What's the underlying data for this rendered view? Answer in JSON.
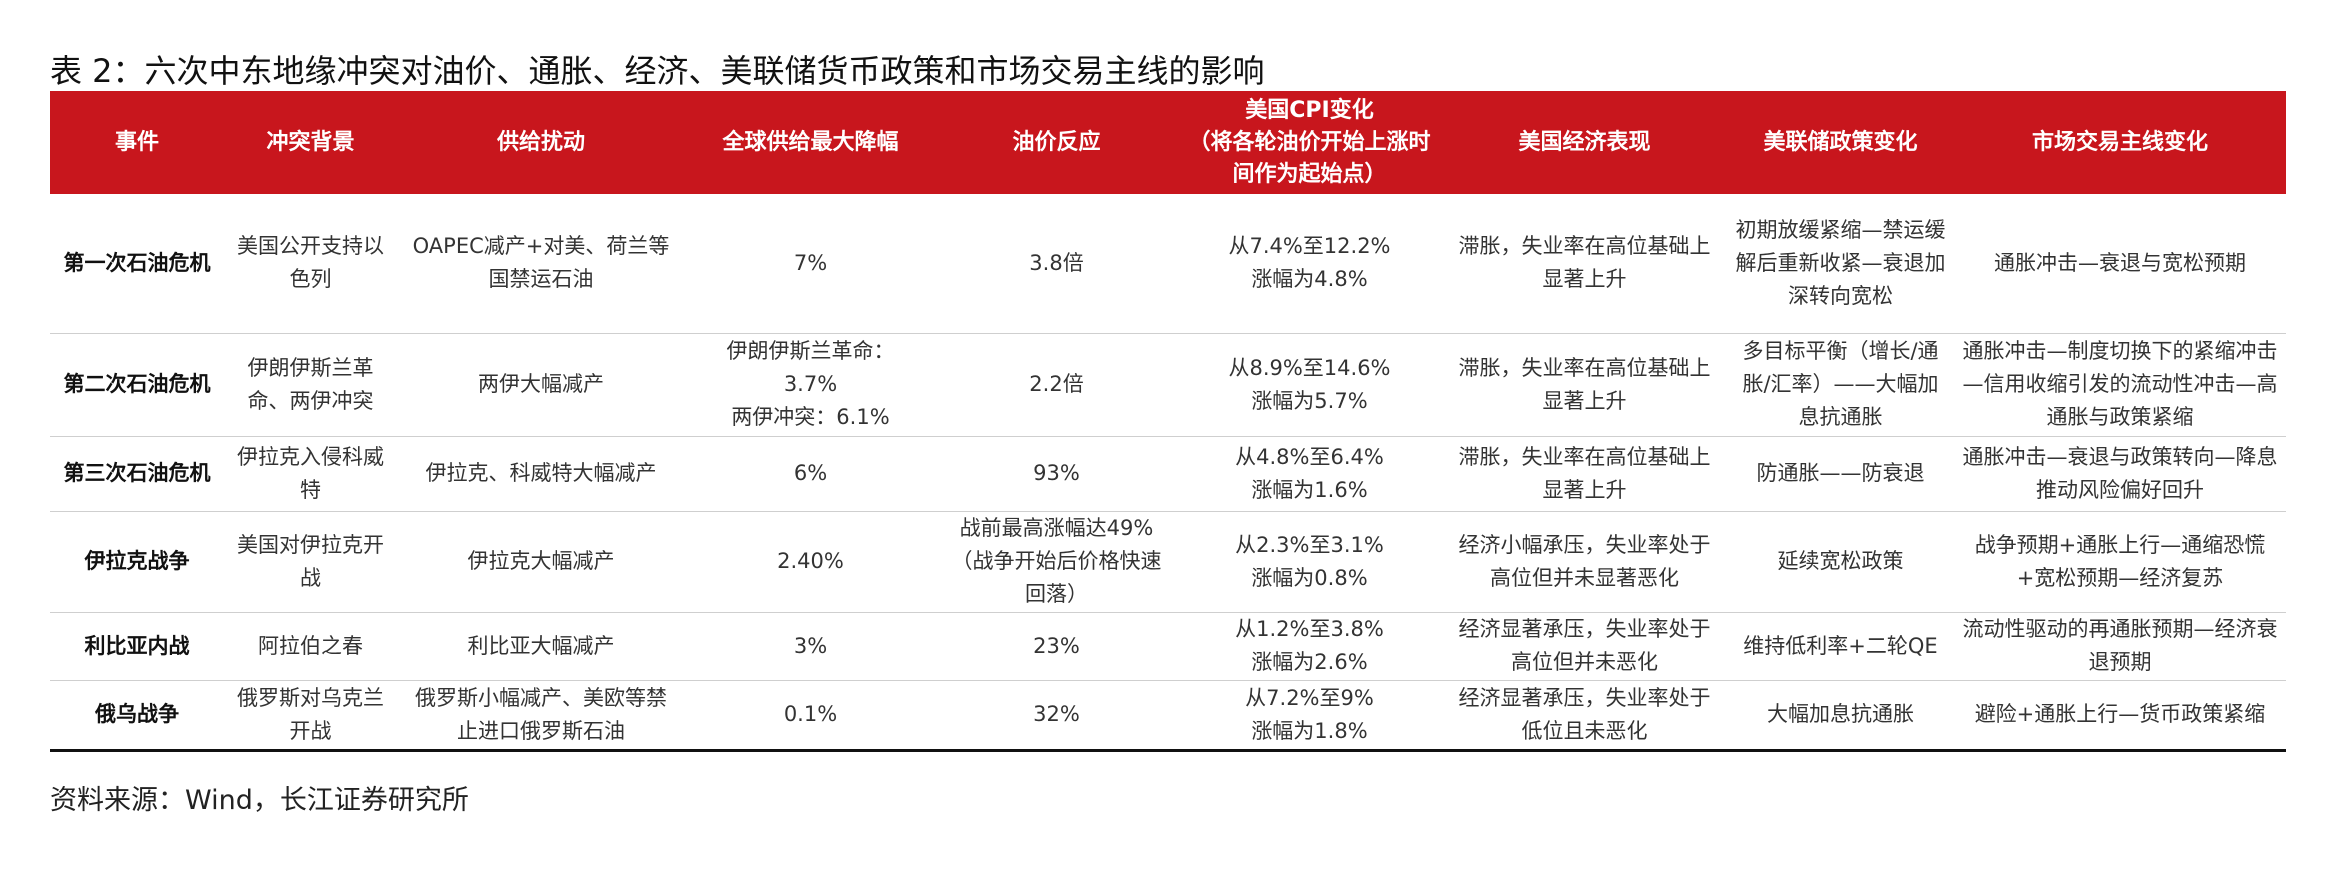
{
  "title": "表 2：六次中东地缘冲突对油价、通胀、经济、美联储货币政策和市场交易主线的影响",
  "table": {
    "headers": [
      "事件",
      "冲突背景",
      "供给扰动",
      "全球供给最大降幅",
      "油价反应",
      [
        "美国CPI变化",
        "（将各轮油价开始上涨时间作为起始点）"
      ],
      "美国经济表现",
      "美联储政策变化",
      "市场交易主线变化"
    ],
    "rows": [
      [
        "第一次石油危机",
        "美国公开支持以色列",
        "OAPEC减产+对美、荷兰等国禁运石油",
        "7%",
        "3.8倍",
        [
          "从7.4%至12.2%",
          "涨幅为4.8%"
        ],
        "滞胀，失业率在高位基础上显著上升",
        "初期放缓紧缩—禁运缓解后重新收紧—衰退加深转向宽松",
        "通胀冲击—衰退与宽松预期"
      ],
      [
        "第二次石油危机",
        "伊朗伊斯兰革命、两伊冲突",
        "两伊大幅减产",
        [
          "伊朗伊斯兰革命：",
          "3.7%",
          "两伊冲突：6.1%"
        ],
        "2.2倍",
        [
          "从8.9%至14.6%",
          "涨幅为5.7%"
        ],
        "滞胀，失业率在高位基础上显著上升",
        "多目标平衡（增长/通胀/汇率）——大幅加息抗通胀",
        "通胀冲击—制度切换下的紧缩冲击—信用收缩引发的流动性冲击—高通胀与政策紧缩"
      ],
      [
        "第三次石油危机",
        "伊拉克入侵科威特",
        "伊拉克、科威特大幅减产",
        "6%",
        "93%",
        [
          "从4.8%至6.4%",
          "涨幅为1.6%"
        ],
        "滞胀，失业率在高位基础上显著上升",
        "防通胀——防衰退",
        "通胀冲击—衰退与政策转向—降息推动风险偏好回升"
      ],
      [
        "伊拉克战争",
        "美国对伊拉克开战",
        "伊拉克大幅减产",
        "2.40%",
        "战前最高涨幅达49%（战争开始后价格快速回落）",
        [
          "从2.3%至3.1%",
          "涨幅为0.8%"
        ],
        "经济小幅承压，失业率处于高位但并未显著恶化",
        "延续宽松政策",
        "战争预期+通胀上行—通缩恐慌+宽松预期—经济复苏"
      ],
      [
        "利比亚内战",
        "阿拉伯之春",
        "利比亚大幅减产",
        "3%",
        "23%",
        [
          "从1.2%至3.8%",
          "涨幅为2.6%"
        ],
        "经济显著承压，失业率处于高位但并未恶化",
        "维持低利率+二轮QE",
        "流动性驱动的再通胀预期—经济衰退预期"
      ],
      [
        "俄乌战争",
        "俄罗斯对乌克兰开战",
        "俄罗斯小幅减产、美欧等禁止进口俄罗斯石油",
        "0.1%",
        "32%",
        [
          "从7.2%至9%",
          "涨幅为1.8%"
        ],
        "经济显著承压，失业率处于低位且未恶化",
        "大幅加息抗通胀",
        "避险+通胀上行—货币政策紧缩"
      ]
    ]
  },
  "source": "资料来源：Wind，长江证券研究所"
}
